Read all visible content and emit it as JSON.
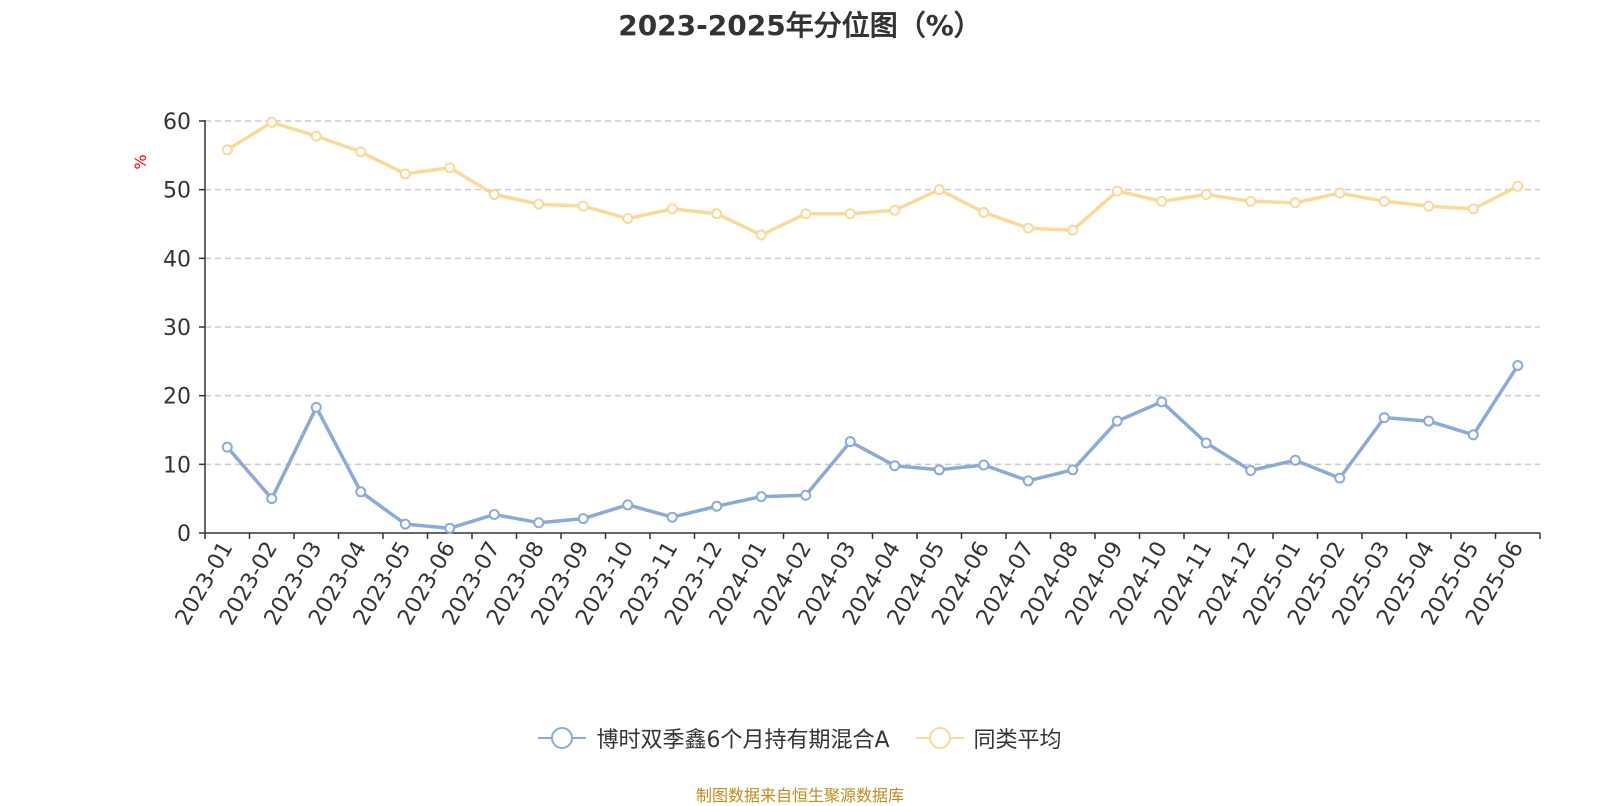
{
  "chart_data": {
    "type": "line",
    "title": "2023-2025年分位图（%）",
    "ylabel": "%",
    "xlabel": "",
    "ylim": [
      0,
      60
    ],
    "yticks": [
      0,
      10,
      20,
      30,
      40,
      50,
      60
    ],
    "grid": true,
    "legend_position": "bottom",
    "categories": [
      "2023-01",
      "2023-02",
      "2023-03",
      "2023-04",
      "2023-05",
      "2023-06",
      "2023-07",
      "2023-08",
      "2023-09",
      "2023-10",
      "2023-11",
      "2023-12",
      "2024-01",
      "2024-02",
      "2024-03",
      "2024-04",
      "2024-05",
      "2024-06",
      "2024-07",
      "2024-08",
      "2024-09",
      "2024-10",
      "2024-11",
      "2024-12",
      "2025-01",
      "2025-02",
      "2025-03",
      "2025-04",
      "2025-05",
      "2025-06"
    ],
    "series": [
      {
        "name": "博时双季鑫6个月持有期混合A",
        "color": "#8caad8",
        "values": [
          12.5,
          5.0,
          18.3,
          6.0,
          1.3,
          0.7,
          2.7,
          1.5,
          2.1,
          4.1,
          2.3,
          3.9,
          5.3,
          5.5,
          13.3,
          9.8,
          9.2,
          9.9,
          7.6,
          9.2,
          16.3,
          19.1,
          13.1,
          9.1,
          10.6,
          8.0,
          16.8,
          16.3,
          14.3,
          24.4
        ]
      },
      {
        "name": "同类平均",
        "color": "#fad99a",
        "values": [
          55.8,
          59.8,
          57.8,
          55.5,
          52.3,
          53.2,
          49.3,
          47.9,
          47.6,
          45.8,
          47.2,
          46.5,
          43.4,
          46.5,
          46.5,
          47.0,
          50.0,
          46.7,
          44.4,
          44.1,
          49.8,
          48.3,
          49.3,
          48.3,
          48.1,
          49.5,
          48.3,
          47.6,
          47.2,
          50.5
        ]
      }
    ],
    "source": "制图数据来自恒生聚源数据库"
  }
}
